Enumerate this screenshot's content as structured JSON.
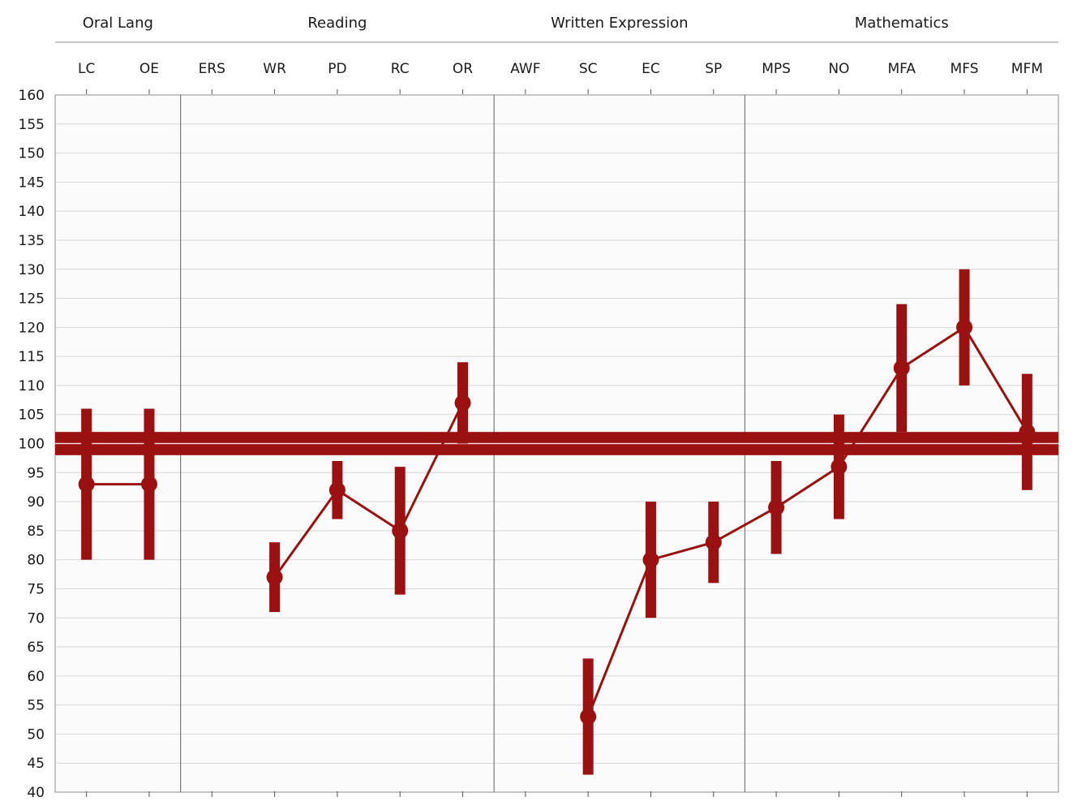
{
  "chart_data": {
    "type": "line",
    "title": "",
    "xlabel": "",
    "ylabel": "",
    "ylim": [
      40,
      160
    ],
    "ytick_step": 5,
    "grid": true,
    "reference_line": 100,
    "reference_band": [
      98,
      102
    ],
    "colors": {
      "accent": "#9b1010",
      "grid": "#d6d6d6",
      "plot_bg": "#fbfbfb"
    },
    "groups": [
      {
        "label": "Oral Lang",
        "categories": [
          "LC",
          "OE"
        ]
      },
      {
        "label": "Reading",
        "categories": [
          "ERS",
          "WR",
          "PD",
          "RC",
          "OR"
        ]
      },
      {
        "label": "Written Expression",
        "categories": [
          "AWF",
          "SC",
          "EC",
          "SP"
        ]
      },
      {
        "label": "Mathematics",
        "categories": [
          "MPS",
          "NO",
          "MFA",
          "MFS",
          "MFM"
        ]
      }
    ],
    "categories": [
      "LC",
      "OE",
      "ERS",
      "WR",
      "PD",
      "RC",
      "OR",
      "AWF",
      "SC",
      "EC",
      "SP",
      "MPS",
      "NO",
      "MFA",
      "MFS",
      "MFM"
    ],
    "series": [
      {
        "values": [
          93,
          93,
          null,
          77,
          92,
          85,
          107,
          null,
          53,
          80,
          83,
          89,
          96,
          113,
          120,
          102
        ],
        "lower": [
          80,
          80,
          null,
          71,
          87,
          74,
          100,
          null,
          43,
          70,
          76,
          81,
          87,
          102,
          110,
          92
        ],
        "upper": [
          106,
          106,
          null,
          83,
          97,
          96,
          114,
          null,
          63,
          90,
          90,
          97,
          105,
          124,
          130,
          112
        ]
      }
    ]
  }
}
